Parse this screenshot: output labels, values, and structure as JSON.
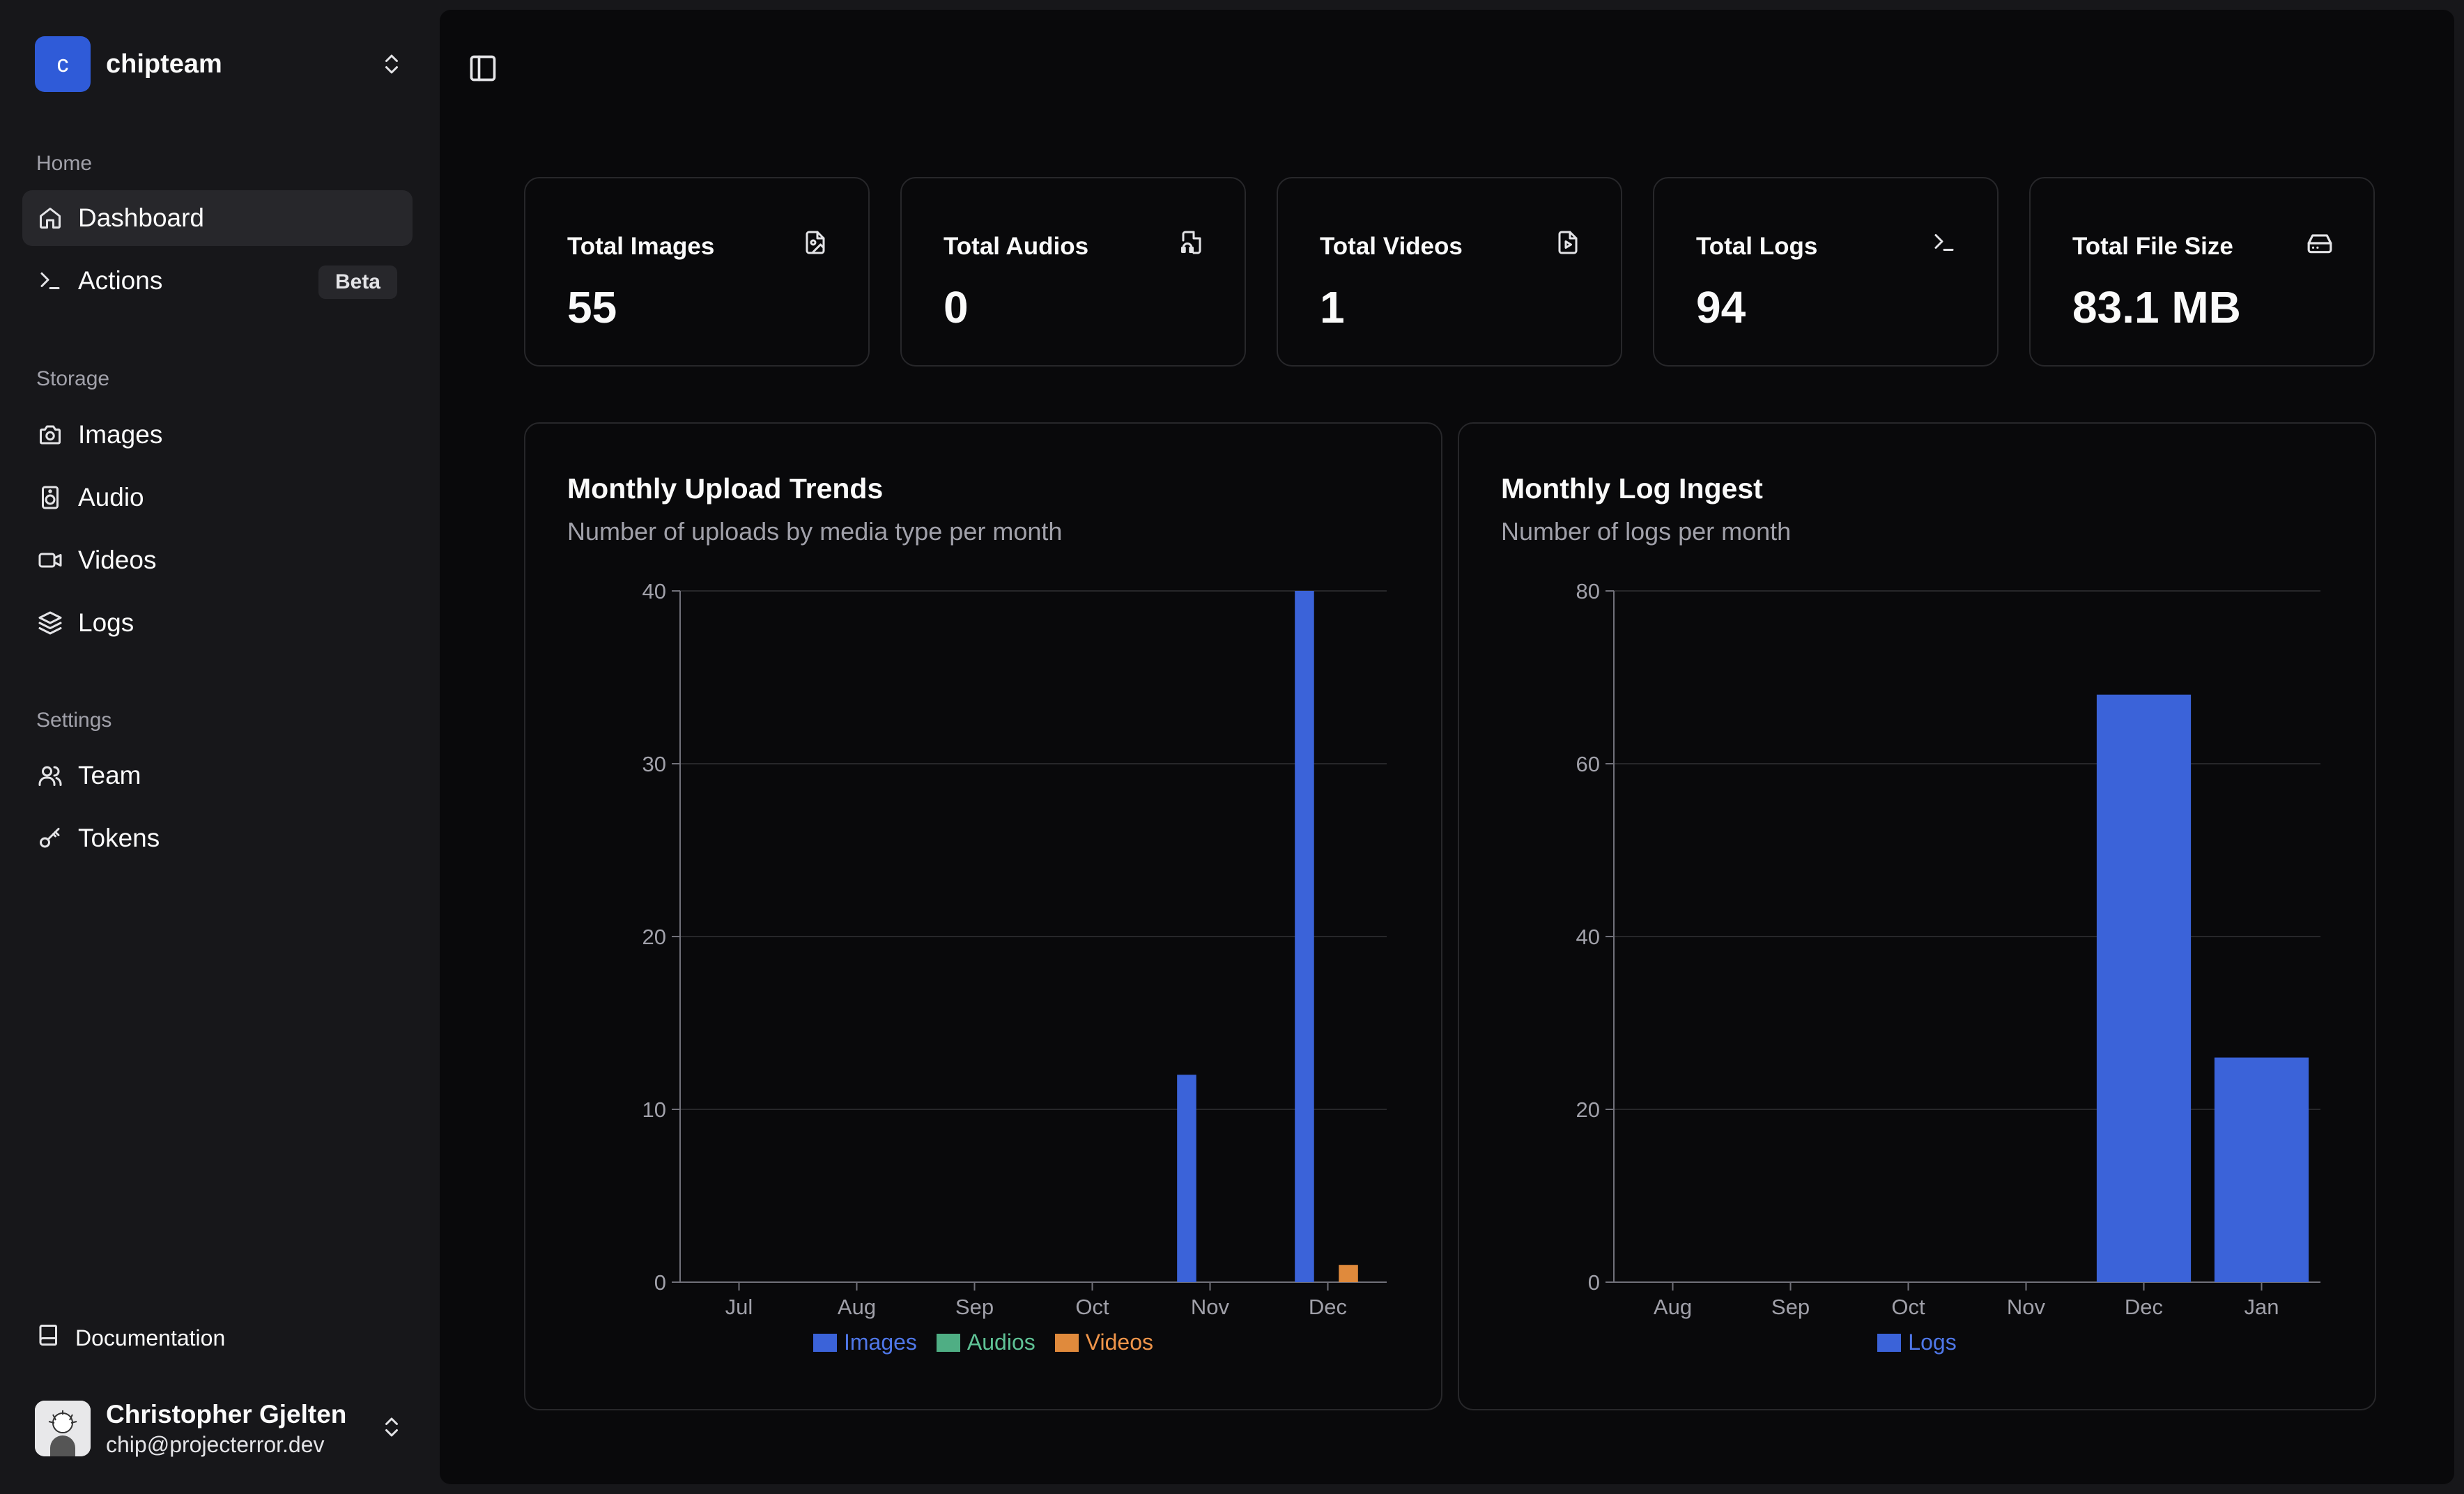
{
  "team": {
    "initial": "c",
    "name": "chipteam"
  },
  "nav": {
    "home_label": "Home",
    "home_items": [
      {
        "label": "Dashboard",
        "icon": "home-icon",
        "active": true
      },
      {
        "label": "Actions",
        "icon": "terminal-icon",
        "badge": "Beta"
      }
    ],
    "storage_label": "Storage",
    "storage_items": [
      {
        "label": "Images",
        "icon": "camera-icon"
      },
      {
        "label": "Audio",
        "icon": "speaker-icon"
      },
      {
        "label": "Videos",
        "icon": "video-icon"
      },
      {
        "label": "Logs",
        "icon": "layers-icon"
      }
    ],
    "settings_label": "Settings",
    "settings_items": [
      {
        "label": "Team",
        "icon": "users-icon"
      },
      {
        "label": "Tokens",
        "icon": "key-icon"
      }
    ],
    "documentation": "Documentation"
  },
  "user": {
    "name": "Christopher Gjelten",
    "email": "chip@projecterror.dev"
  },
  "stats": [
    {
      "title": "Total Images",
      "value": "55",
      "icon": "file-image-icon"
    },
    {
      "title": "Total Audios",
      "value": "0",
      "icon": "file-audio-icon"
    },
    {
      "title": "Total Videos",
      "value": "1",
      "icon": "file-video-icon"
    },
    {
      "title": "Total Logs",
      "value": "94",
      "icon": "terminal-icon"
    },
    {
      "title": "Total File Size",
      "value": "83.1 MB",
      "icon": "hard-drive-icon"
    }
  ],
  "panels": {
    "uploads": {
      "title": "Monthly Upload Trends",
      "subtitle": "Number of uploads by media type per month"
    },
    "logs": {
      "title": "Monthly Log Ingest",
      "subtitle": "Number of logs per month"
    }
  },
  "colors": {
    "images": "#3b63d9",
    "audios": "#4fae84",
    "videos": "#e08a3c",
    "accent": "#2f5bd8"
  },
  "chart_data": [
    {
      "type": "bar",
      "title": "Monthly Upload Trends",
      "categories": [
        "Jul",
        "Aug",
        "Sep",
        "Oct",
        "Nov",
        "Dec"
      ],
      "series": [
        {
          "name": "Images",
          "values": [
            0,
            0,
            0,
            0,
            12,
            40
          ]
        },
        {
          "name": "Audios",
          "values": [
            0,
            0,
            0,
            0,
            0,
            0
          ]
        },
        {
          "name": "Videos",
          "values": [
            0,
            0,
            0,
            0,
            0,
            1
          ]
        }
      ],
      "yticks": [
        0,
        10,
        20,
        30,
        40
      ],
      "ylim": [
        0,
        40
      ],
      "legend": "bottom",
      "grid": true
    },
    {
      "type": "bar",
      "title": "Monthly Log Ingest",
      "categories": [
        "Aug",
        "Sep",
        "Oct",
        "Nov",
        "Dec",
        "Jan"
      ],
      "series": [
        {
          "name": "Logs",
          "values": [
            0,
            0,
            0,
            0,
            68,
            26
          ]
        }
      ],
      "yticks": [
        0,
        20,
        40,
        60,
        80
      ],
      "ylim": [
        0,
        80
      ],
      "legend": "bottom",
      "grid": true
    }
  ]
}
